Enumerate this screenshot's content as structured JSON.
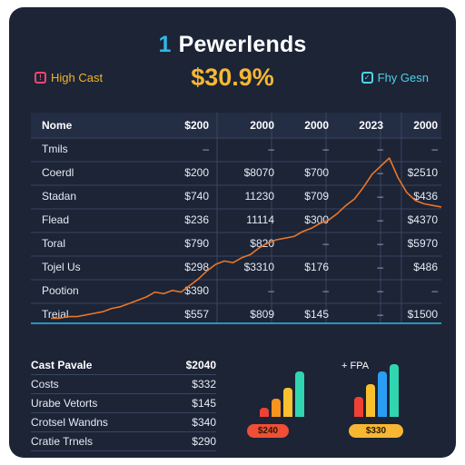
{
  "header": {
    "title_num": "1",
    "title": "Pewerlends",
    "kpi": "$30.9%",
    "left_pill": "High Cast",
    "right_pill": "Fhy Gesn"
  },
  "table": {
    "columns": [
      "Nome",
      "$200",
      "2000",
      "2000",
      "2023",
      "2000"
    ],
    "rows": [
      [
        "Tmils",
        "–",
        "–",
        "–",
        "–",
        "–"
      ],
      [
        "Coerdl",
        "$200",
        "$8070",
        "$700",
        "–",
        "$2510"
      ],
      [
        "Stadan",
        "$740",
        "11230",
        "$709",
        "–",
        "$436"
      ],
      [
        "Flead",
        "$236",
        "11114",
        "$300",
        "–",
        "$4370"
      ],
      [
        "Toral",
        "$790",
        "$820",
        "–",
        "–",
        "$5970"
      ],
      [
        "Tojel Us",
        "$298",
        "$3310",
        "$176",
        "–",
        "$486"
      ],
      [
        "Pootion",
        "$390",
        "–",
        "–",
        "–",
        "–"
      ],
      [
        "Treial",
        "$557",
        "$809",
        "$145",
        "–",
        "$1500"
      ]
    ]
  },
  "bottom_table": {
    "rows": [
      [
        "Cast Pavale",
        "$2040"
      ],
      [
        "Costs",
        "$332"
      ],
      [
        "Urabe Vetorts",
        "$145"
      ],
      [
        "Crotsel Wandns",
        "$340"
      ],
      [
        "Cratie Trnels",
        "$290"
      ]
    ]
  },
  "bar_groups": [
    {
      "badge": "$240",
      "values": [
        8,
        17,
        27,
        42
      ]
    },
    {
      "badge": "$330",
      "label": "+ FPA",
      "values": [
        18,
        30,
        42,
        48
      ]
    }
  ],
  "colors": {
    "card": "#1c2436",
    "accent_blue": "#2fb8e6",
    "accent_gold": "#f7b733",
    "line_orange": "#e8762b",
    "bar_red": "#ef4136",
    "bar_orange": "#f7941d",
    "bar_yellow": "#f9c12e",
    "bar_teal": "#2fd6b0",
    "bar_blue": "#2a9df4",
    "badge_red": "#f04e36",
    "badge_yellow": "#f7b733"
  },
  "chart_data": {
    "type": "line",
    "series": [
      {
        "values": [
          2,
          2,
          3,
          3,
          4,
          5,
          6,
          8,
          9,
          11,
          13,
          15,
          18,
          17,
          19,
          18,
          22,
          26,
          31,
          35,
          37,
          36,
          39,
          41,
          45,
          48,
          50,
          51,
          52,
          55,
          57,
          60,
          62,
          66,
          71,
          75,
          82,
          90,
          95,
          100,
          88,
          79,
          74,
          72,
          71,
          70
        ]
      }
    ],
    "ylim": [
      0,
      100
    ],
    "grid": true
  }
}
